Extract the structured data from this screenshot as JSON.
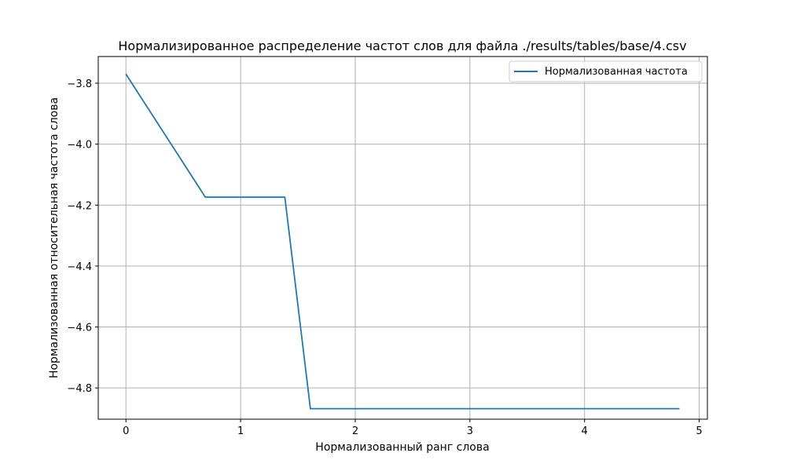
{
  "chart_data": {
    "type": "line",
    "title": "Нормализированное распределение частот слов для файла ./results/tables/base/4.csv",
    "xlabel": "Нормализованный ранг слова",
    "ylabel": "Нормализованная относительная частота слова",
    "xlim": [
      -0.2415,
      5.0715
    ],
    "ylim": [
      -4.9026,
      -3.7124
    ],
    "x_ticks": [
      0,
      1,
      2,
      3,
      4,
      5
    ],
    "x_tick_labels": [
      "0",
      "1",
      "2",
      "3",
      "4",
      "5"
    ],
    "y_ticks": [
      -3.8,
      -4.0,
      -4.2,
      -4.4,
      -4.6,
      -4.8
    ],
    "y_tick_labels": [
      "−3.8",
      "−4.0",
      "−4.2",
      "−4.4",
      "−4.6",
      "−4.8"
    ],
    "grid": true,
    "legend_position": "top-right",
    "series": [
      {
        "name": "Нормализованная частота",
        "color": "#1f77b4",
        "x": [
          0,
          0.693,
          1.386,
          1.609,
          1.792,
          1.946,
          2.079,
          2.197,
          2.303,
          2.398,
          2.485,
          2.565,
          2.639,
          2.708,
          2.773,
          2.833,
          2.89,
          2.944,
          2.996,
          3.045,
          3.091,
          3.135,
          3.178,
          3.219,
          3.258,
          3.296,
          3.332,
          3.367,
          3.401,
          3.434,
          3.466,
          3.497,
          3.526,
          3.555,
          3.584,
          3.611,
          3.638,
          3.664,
          3.689,
          3.714,
          3.738,
          3.761,
          3.784,
          3.807,
          3.829,
          3.85,
          3.871,
          3.892,
          3.912,
          3.932,
          3.951,
          3.97,
          3.989,
          4.007,
          4.025,
          4.043,
          4.06,
          4.078,
          4.094,
          4.111,
          4.127,
          4.143,
          4.159,
          4.174,
          4.19,
          4.205,
          4.22,
          4.234,
          4.249,
          4.263,
          4.277,
          4.29,
          4.304,
          4.317,
          4.331,
          4.344,
          4.357,
          4.369,
          4.382,
          4.394,
          4.407,
          4.419,
          4.431,
          4.443,
          4.454,
          4.466,
          4.477,
          4.489,
          4.5,
          4.511,
          4.522,
          4.533,
          4.543,
          4.554,
          4.564,
          4.575,
          4.585,
          4.595,
          4.605,
          4.615,
          4.625,
          4.635,
          4.644,
          4.654,
          4.663,
          4.673,
          4.682,
          4.691,
          4.7,
          4.71,
          4.718,
          4.727,
          4.736,
          4.745,
          4.754,
          4.762,
          4.771,
          4.779,
          4.787,
          4.796,
          4.804,
          4.812,
          4.82,
          4.828
        ],
        "y": [
          -3.77,
          -4.174,
          -4.174,
          -4.868,
          -4.868,
          -4.868,
          -4.868,
          -4.868,
          -4.868,
          -4.868,
          -4.868,
          -4.868,
          -4.868,
          -4.868,
          -4.868,
          -4.868,
          -4.868,
          -4.868,
          -4.868,
          -4.868,
          -4.868,
          -4.868,
          -4.868,
          -4.868,
          -4.868,
          -4.868,
          -4.868,
          -4.868,
          -4.868,
          -4.868,
          -4.868,
          -4.868,
          -4.868,
          -4.868,
          -4.868,
          -4.868,
          -4.868,
          -4.868,
          -4.868,
          -4.868,
          -4.868,
          -4.868,
          -4.868,
          -4.868,
          -4.868,
          -4.868,
          -4.868,
          -4.868,
          -4.868,
          -4.868,
          -4.868,
          -4.868,
          -4.868,
          -4.868,
          -4.868,
          -4.868,
          -4.868,
          -4.868,
          -4.868,
          -4.868,
          -4.868,
          -4.868,
          -4.868,
          -4.868,
          -4.868,
          -4.868,
          -4.868,
          -4.868,
          -4.868,
          -4.868,
          -4.868,
          -4.868,
          -4.868,
          -4.868,
          -4.868,
          -4.868,
          -4.868,
          -4.868,
          -4.868,
          -4.868,
          -4.868,
          -4.868,
          -4.868,
          -4.868,
          -4.868,
          -4.868,
          -4.868,
          -4.868,
          -4.868,
          -4.868,
          -4.868,
          -4.868,
          -4.868,
          -4.868,
          -4.868,
          -4.868,
          -4.868,
          -4.868,
          -4.868,
          -4.868,
          -4.868,
          -4.868,
          -4.868,
          -4.868,
          -4.868,
          -4.868,
          -4.868,
          -4.868,
          -4.868,
          -4.868,
          -4.868,
          -4.868,
          -4.868,
          -4.868,
          -4.868,
          -4.868,
          -4.868,
          -4.868,
          -4.868,
          -4.868,
          -4.868,
          -4.868,
          -4.868,
          -4.868
        ]
      }
    ]
  }
}
